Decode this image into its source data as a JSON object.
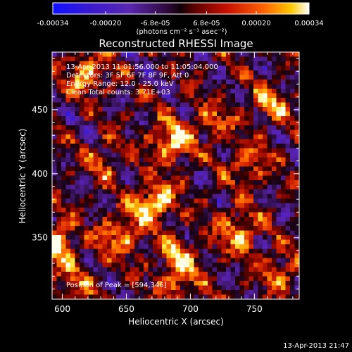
{
  "chart_data": {
    "type": "heatmap",
    "title": "Reconstructed RHESSI Image",
    "xlabel": "Heliocentric X (arcsec)",
    "ylabel": "Heliocentric Y (arcsec)",
    "xlim": [
      592,
      785
    ],
    "ylim": [
      302,
      495
    ],
    "x_ticks": [
      "600",
      "650",
      "700",
      "750"
    ],
    "x_tick_values": [
      600,
      650,
      700,
      750
    ],
    "y_ticks": [
      "350",
      "400",
      "450"
    ],
    "y_tick_values": [
      350,
      400,
      450
    ],
    "colorbar": {
      "min": -0.00034,
      "max": 0.00034,
      "tick_labels": [
        "-0.00034",
        "-0.00020",
        "-6.8e-05",
        "6.8e-05",
        "0.00020",
        "0.00034"
      ],
      "tick_values": [
        -0.00034,
        -0.0002,
        -6.8e-05,
        6.8e-05,
        0.0002,
        0.00034
      ],
      "units_label": "(photons cm⁻² s⁻¹ asec⁻²)"
    },
    "annotations": {
      "time_range": "13-Apr-2013 11:01:56.000 to 11:05:04.000",
      "detectors": "Detectors: 3F 5F 6F 7F 8F 9F, Att 0",
      "energy": "Energy Range: 12.0 - 25.0 keV",
      "clean": "Clean    Total counts: 3.71E+03",
      "peak": "Position of Peak = [594,346]"
    },
    "peaks": [
      {
        "x": 594,
        "y": 346,
        "intensity": 1.0
      },
      {
        "x": 672,
        "y": 378,
        "intensity": 0.95
      },
      {
        "x": 685,
        "y": 424,
        "intensity": 0.85
      },
      {
        "x": 618,
        "y": 478,
        "intensity": 0.75
      },
      {
        "x": 738,
        "y": 355,
        "intensity": 0.7
      },
      {
        "x": 690,
        "y": 335,
        "intensity": 0.6
      },
      {
        "x": 645,
        "y": 352,
        "intensity": 0.65
      },
      {
        "x": 763,
        "y": 455,
        "intensity": 0.55
      },
      {
        "x": 745,
        "y": 408,
        "intensity": 0.5
      },
      {
        "x": 690,
        "y": 312,
        "intensity": 0.5
      },
      {
        "x": 718,
        "y": 440,
        "intensity": 0.45
      },
      {
        "x": 632,
        "y": 410,
        "intensity": 0.4
      },
      {
        "x": 610,
        "y": 315,
        "intensity": 0.4
      },
      {
        "x": 770,
        "y": 325,
        "intensity": 0.5
      }
    ]
  },
  "footer": {
    "timestamp": "13-Apr-2013 21:47"
  }
}
